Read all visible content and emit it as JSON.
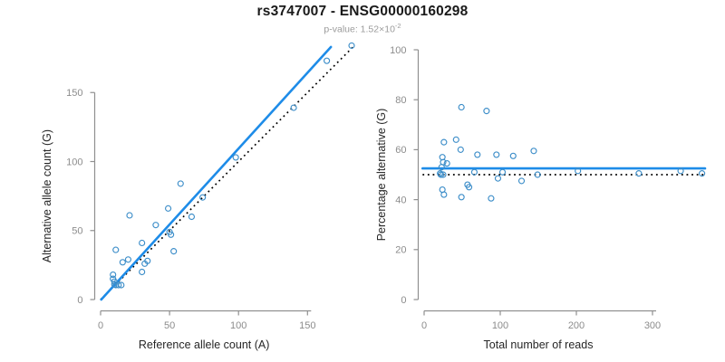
{
  "header": {
    "title": "rs3747007 - ENSG00000160298",
    "p_prefix": "p-value: ",
    "p_base": "1.52×10",
    "p_exp": "-2"
  },
  "colors": {
    "fit_line": "#1E8CE8",
    "point_stroke": "#3D8EC9",
    "identity_line": "#000000",
    "axis": "#909090",
    "tick_label": "#8C8C8C",
    "axis_label": "#262626",
    "title": "#1A1A1A",
    "subtitle": "#9B9B9B"
  },
  "chart_data": [
    {
      "type": "scatter",
      "panel": "left",
      "xlabel": "Reference allele count (A)",
      "ylabel": "Alternative allele count (G)",
      "xlim": [
        0,
        185
      ],
      "ylim": [
        0,
        185
      ],
      "xticks": [
        0,
        50,
        100,
        150
      ],
      "yticks": [
        0,
        50,
        100,
        150
      ],
      "grid": false,
      "legend": null,
      "points": [
        [
          11,
          36
        ],
        [
          16,
          27
        ],
        [
          20,
          29
        ],
        [
          21,
          61
        ],
        [
          30,
          41
        ],
        [
          30,
          20
        ],
        [
          32,
          26
        ],
        [
          34,
          28
        ],
        [
          40,
          54
        ],
        [
          49,
          66
        ],
        [
          50,
          49
        ],
        [
          51,
          47
        ],
        [
          53,
          35
        ],
        [
          58,
          84
        ],
        [
          66,
          60
        ],
        [
          74,
          74
        ],
        [
          98,
          103
        ],
        [
          140,
          139
        ],
        [
          164,
          173
        ],
        [
          182,
          184
        ],
        [
          9,
          18
        ],
        [
          9,
          15
        ],
        [
          10,
          13
        ],
        [
          10,
          11
        ],
        [
          11,
          10.5
        ],
        [
          13,
          10.5
        ],
        [
          15,
          10.5
        ]
      ],
      "fit_line": {
        "kind": "segment",
        "x1": 0.5,
        "y1": 0,
        "x2": 167,
        "y2": 183
      },
      "identity_line": {
        "kind": "segment",
        "x1": 0,
        "y1": 0,
        "x2": 184,
        "y2": 184
      }
    },
    {
      "type": "scatter",
      "panel": "right",
      "xlabel": "Total number of reads",
      "ylabel": "Percentage alternative (G)",
      "xlim": [
        0,
        370
      ],
      "ylim": [
        0,
        100
      ],
      "xticks": [
        0,
        100,
        200,
        300
      ],
      "yticks": [
        0,
        20,
        40,
        60,
        80,
        100
      ],
      "grid": false,
      "legend": null,
      "points": [
        [
          21,
          50.5
        ],
        [
          22,
          50
        ],
        [
          23,
          53
        ],
        [
          24,
          57
        ],
        [
          25,
          55
        ],
        [
          25,
          50
        ],
        [
          24,
          44
        ],
        [
          26,
          42
        ],
        [
          26,
          63
        ],
        [
          30,
          54.5
        ],
        [
          42,
          64
        ],
        [
          48,
          60
        ],
        [
          49,
          77
        ],
        [
          49,
          41
        ],
        [
          57,
          46
        ],
        [
          59,
          45
        ],
        [
          66,
          51
        ],
        [
          70,
          58
        ],
        [
          82,
          75.5
        ],
        [
          88,
          40.5
        ],
        [
          95,
          58
        ],
        [
          97,
          48.5
        ],
        [
          103,
          51
        ],
        [
          117,
          57.5
        ],
        [
          128,
          47.5
        ],
        [
          144,
          59.5
        ],
        [
          149,
          50
        ],
        [
          202,
          51.5
        ],
        [
          282,
          50.5
        ],
        [
          337,
          51.5
        ],
        [
          365,
          50.5
        ]
      ],
      "fit_line": {
        "kind": "hline",
        "y": 52.5,
        "x1": -2,
        "x2": 369
      },
      "identity_line": {
        "kind": "hline",
        "y": 50,
        "x1": -2,
        "x2": 369
      }
    }
  ]
}
